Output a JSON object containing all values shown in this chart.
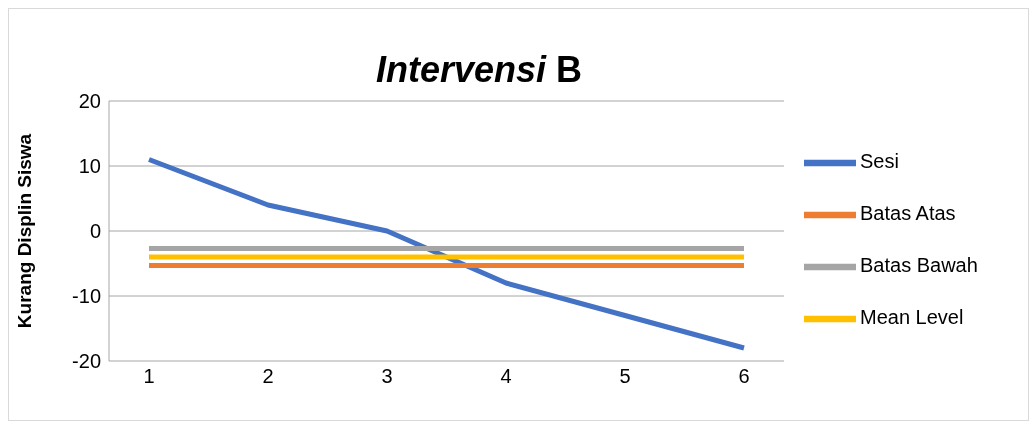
{
  "chart_data": {
    "type": "line",
    "title": "Intervensi B",
    "ylabel": "Kurang Displin Siswa",
    "categories": [
      "1",
      "2",
      "3",
      "4",
      "5",
      "6"
    ],
    "series": [
      {
        "name": "Sesi",
        "color": "#4472c4",
        "values": [
          11,
          4,
          0,
          -8,
          -13,
          -18
        ]
      },
      {
        "name": "Batas Atas",
        "color": "#ed7d31",
        "values": [
          -5.3,
          -5.3,
          -5.3,
          -5.3,
          -5.3,
          -5.3
        ]
      },
      {
        "name": "Batas Bawah",
        "color": "#a5a5a5",
        "values": [
          -2.7,
          -2.7,
          -2.7,
          -2.7,
          -2.7,
          -2.7
        ]
      },
      {
        "name": "Mean Level",
        "color": "#ffc000",
        "values": [
          -4,
          -4,
          -4,
          -4,
          -4,
          -4
        ]
      }
    ],
    "ylim": [
      -20,
      20
    ],
    "yticks": [
      -20,
      -10,
      0,
      10,
      20
    ],
    "grid": "y",
    "legend": "right",
    "marker": "none",
    "line_style": "solid"
  }
}
